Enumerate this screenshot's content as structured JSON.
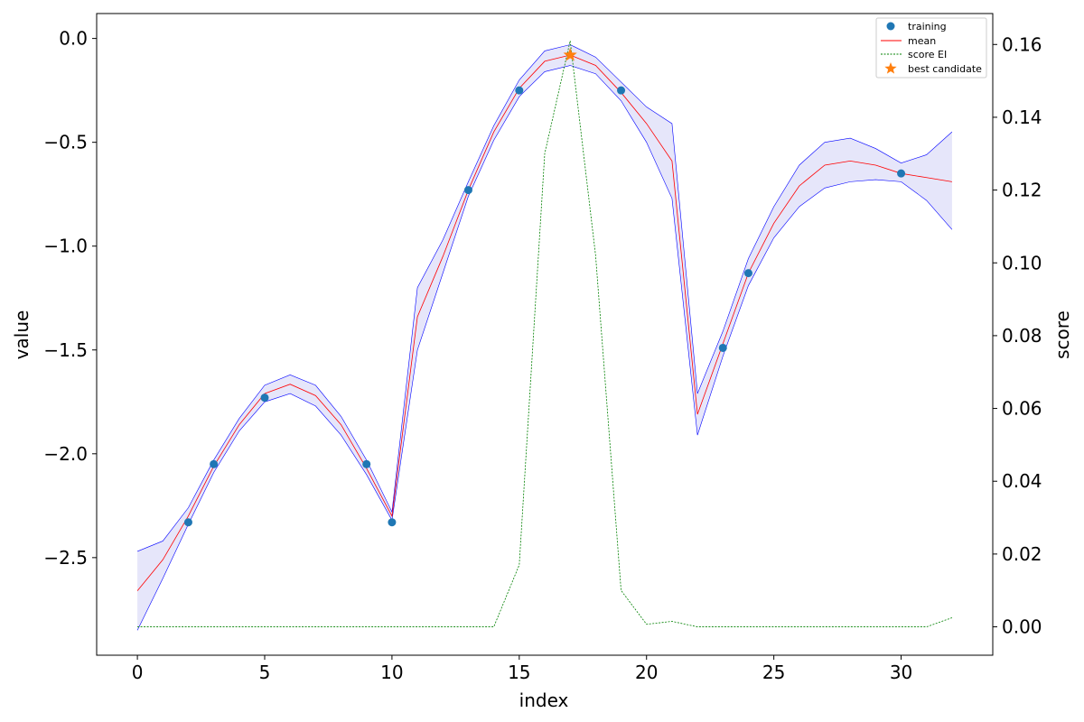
{
  "chart_data": {
    "type": "line",
    "xlabel": "index",
    "ylabel": "value",
    "y2label": "score",
    "xlim": [
      -1.6,
      33.6
    ],
    "ylim": [
      -2.97,
      0.12
    ],
    "y2lim": [
      -0.0078,
      0.1685
    ],
    "x_ticks": [
      0,
      5,
      10,
      15,
      20,
      25,
      30
    ],
    "y_ticks": [
      0.0,
      -0.5,
      -1.0,
      -1.5,
      -2.0,
      -2.5
    ],
    "y_tick_labels": [
      "0.0",
      "−0.5",
      "−1.0",
      "−1.5",
      "−2.0",
      "−2.5"
    ],
    "y2_ticks": [
      0.16,
      0.14,
      0.12,
      0.1,
      0.08,
      0.06,
      0.04,
      0.02,
      0.0
    ],
    "y2_tick_labels": [
      "0.16",
      "0.14",
      "0.12",
      "0.10",
      "0.08",
      "0.06",
      "0.04",
      "0.02",
      "0.00"
    ],
    "legend_position": "top-right",
    "grid": false,
    "series": [
      {
        "name": "training",
        "kind": "scatter",
        "color": "#1f77b4",
        "x": [
          2,
          3,
          5,
          9,
          10,
          13,
          15,
          19,
          23,
          24,
          30
        ],
        "y": [
          -2.33,
          -2.05,
          -1.73,
          -2.05,
          -2.33,
          -0.73,
          -0.25,
          -0.25,
          -1.49,
          -1.13,
          -0.65
        ]
      },
      {
        "name": "mean",
        "kind": "line",
        "color": "#ff0000",
        "x": [
          0,
          1,
          2,
          3,
          4,
          5,
          6,
          7,
          8,
          9,
          10,
          11,
          12,
          13,
          14,
          15,
          16,
          17,
          18,
          19,
          20,
          21,
          22,
          23,
          24,
          25,
          26,
          27,
          28,
          29,
          30,
          31,
          32
        ],
        "y": [
          -2.66,
          -2.51,
          -2.3,
          -2.06,
          -1.86,
          -1.71,
          -1.665,
          -1.72,
          -1.86,
          -2.07,
          -2.3,
          -1.34,
          -1.05,
          -0.73,
          -0.45,
          -0.24,
          -0.11,
          -0.08,
          -0.13,
          -0.26,
          -0.41,
          -0.59,
          -1.81,
          -1.47,
          -1.13,
          -0.89,
          -0.71,
          -0.61,
          -0.59,
          -0.61,
          -0.65,
          -0.67,
          -0.69
        ]
      },
      {
        "name": "uncertainty band",
        "kind": "band",
        "color": "#0000ff",
        "fill": "#e6e6fa",
        "x": [
          0,
          1,
          2,
          3,
          4,
          5,
          6,
          7,
          8,
          9,
          10,
          11,
          12,
          13,
          14,
          15,
          16,
          17,
          18,
          19,
          20,
          21,
          22,
          23,
          24,
          25,
          26,
          27,
          28,
          29,
          30,
          31,
          32
        ],
        "upper": [
          -2.47,
          -2.42,
          -2.26,
          -2.03,
          -1.83,
          -1.67,
          -1.62,
          -1.67,
          -1.82,
          -2.03,
          -2.28,
          -1.2,
          -0.97,
          -0.69,
          -0.42,
          -0.2,
          -0.06,
          -0.03,
          -0.09,
          -0.21,
          -0.33,
          -0.41,
          -1.71,
          -1.41,
          -1.06,
          -0.81,
          -0.61,
          -0.5,
          -0.48,
          -0.53,
          -0.6,
          -0.56,
          -0.45
        ],
        "lower": [
          -2.85,
          -2.6,
          -2.34,
          -2.09,
          -1.89,
          -1.75,
          -1.71,
          -1.77,
          -1.91,
          -2.1,
          -2.32,
          -1.5,
          -1.13,
          -0.76,
          -0.49,
          -0.28,
          -0.16,
          -0.13,
          -0.17,
          -0.3,
          -0.5,
          -0.77,
          -1.91,
          -1.53,
          -1.19,
          -0.96,
          -0.81,
          -0.72,
          -0.69,
          -0.68,
          -0.69,
          -0.78,
          -0.92
        ]
      },
      {
        "name": "score EI",
        "kind": "line",
        "axis": "right",
        "color": "#008000",
        "x": [
          0,
          1,
          2,
          3,
          4,
          5,
          6,
          7,
          8,
          9,
          10,
          11,
          12,
          13,
          14,
          15,
          16,
          17,
          18,
          19,
          20,
          21,
          22,
          23,
          24,
          25,
          26,
          27,
          28,
          29,
          30,
          31,
          32
        ],
        "y": [
          0,
          0,
          0,
          0,
          0,
          0,
          0,
          0,
          0,
          0,
          0,
          0,
          0,
          0,
          0,
          0.017,
          0.13,
          0.161,
          0.102,
          0.01,
          0.0007,
          0.0015,
          0,
          0,
          0,
          0,
          0,
          0,
          0,
          0,
          0,
          0,
          0.0025
        ]
      },
      {
        "name": "best candidate",
        "kind": "marker",
        "color": "#ff7f0e",
        "x": [
          17
        ],
        "y": [
          -0.08
        ]
      }
    ]
  }
}
